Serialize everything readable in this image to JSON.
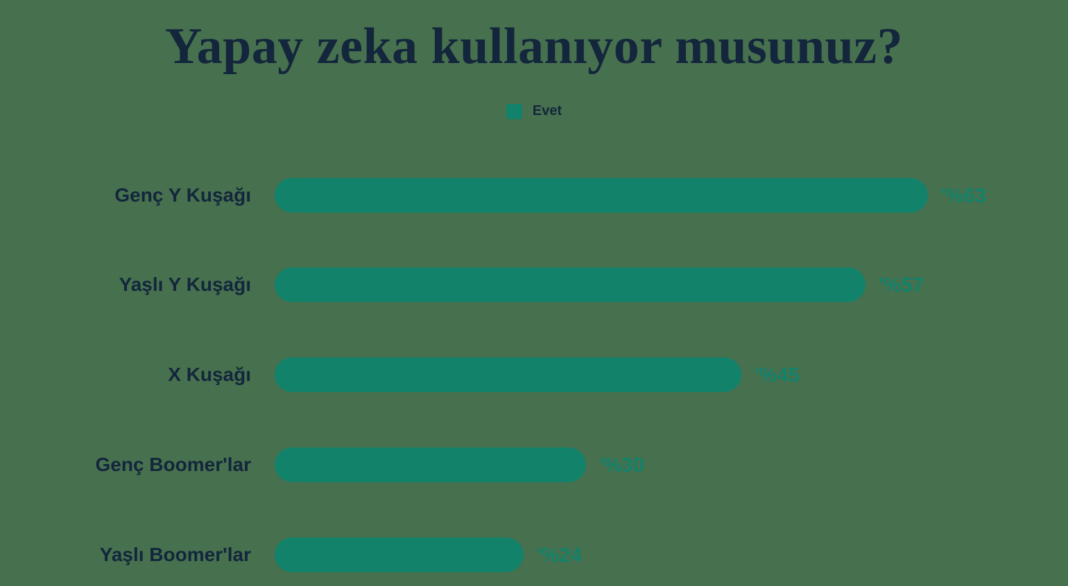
{
  "page": {
    "background_color": "#47704E",
    "title": "Yapay zeka kullanıyor musunuz?",
    "title_color": "#13263C"
  },
  "legend": {
    "items": [
      {
        "label": "Evet",
        "swatch_color": "#12826B"
      }
    ]
  },
  "chart_data": {
    "type": "bar",
    "orientation": "horizontal",
    "title": "Yapay zeka kullanıyor musunuz?",
    "legend_entries": [
      "Evet"
    ],
    "legend_position": "top-center",
    "grid": false,
    "categories": [
      "Genç Y Kuşağı",
      "Yaşlı Y Kuşağı",
      "X Kuşağı",
      "Genç Boomer'lar",
      "Yaşlı Boomer'lar"
    ],
    "series": [
      {
        "name": "Evet",
        "values": [
          63,
          57,
          45,
          30,
          24
        ]
      }
    ],
    "value_labels": [
      "'%63",
      "'%57",
      "'%45",
      "'%30",
      "'%24"
    ],
    "xlim": [
      0,
      63
    ],
    "bar_color": "#12826B",
    "value_label_color": "#12826B",
    "category_label_color": "#13263C"
  }
}
